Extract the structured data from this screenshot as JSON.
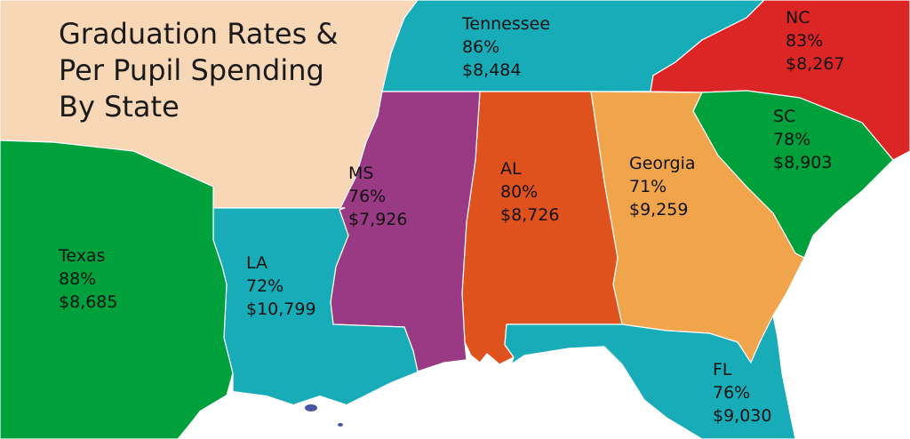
{
  "title": {
    "line1": "Graduation Rates &",
    "line2": "Per Pupil Spending",
    "line3": "By State"
  },
  "colors": {
    "background_land": "#f8d7b7",
    "texas": "#00a03c",
    "louisiana": "#17acb8",
    "mississippi": "#9b3a84",
    "alabama": "#e0521d",
    "georgia": "#f0a44c",
    "tennessee": "#17acb8",
    "north_carolina": "#dc2626",
    "south_carolina": "#00a03c",
    "florida": "#17acb8",
    "water": "#ffffff"
  },
  "states": {
    "texas": {
      "name": "Texas",
      "rate": "88%",
      "spending": "$8,685"
    },
    "louisiana": {
      "name": "LA",
      "rate": "72%",
      "spending": "$10,799"
    },
    "mississippi": {
      "name": "MS",
      "rate": "76%",
      "spending": "$7,926"
    },
    "alabama": {
      "name": "AL",
      "rate": "80%",
      "spending": "$8,726"
    },
    "georgia": {
      "name": "Georgia",
      "rate": "71%",
      "spending": "$9,259"
    },
    "tennessee": {
      "name": "Tennessee",
      "rate": "86%",
      "spending": "$8,484"
    },
    "north_carolina": {
      "name": "NC",
      "rate": "83%",
      "spending": "$8,267"
    },
    "south_carolina": {
      "name": "SC",
      "rate": "78%",
      "spending": "$8,903"
    },
    "florida": {
      "name": "FL",
      "rate": "76%",
      "spending": "$9,030"
    }
  }
}
